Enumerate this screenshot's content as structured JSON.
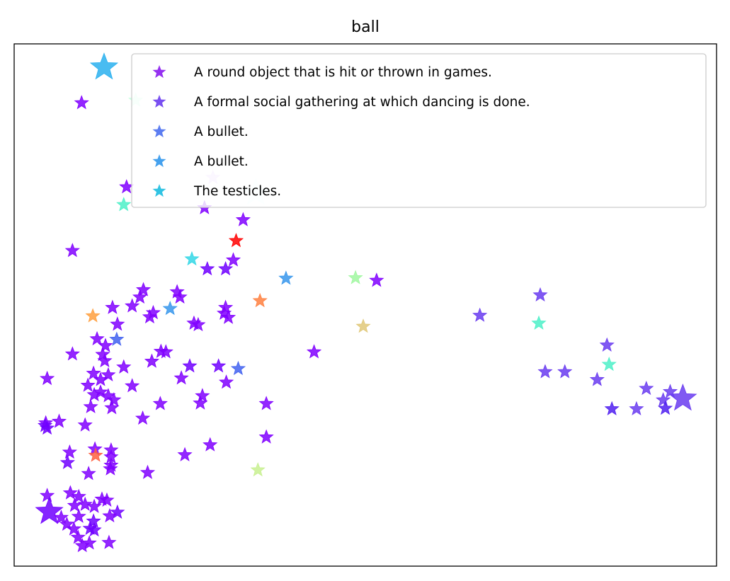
{
  "chart_data": {
    "type": "scatter",
    "title": "ball",
    "xlabel": "",
    "ylabel": "",
    "xlim": [
      0,
      100
    ],
    "ylim": [
      0,
      100
    ],
    "grid": false,
    "axis_ticks": false,
    "marker": "star",
    "legend": {
      "placement": "top-right",
      "entries": [
        {
          "label": "A round object that is hit or thrown in games.",
          "color": "#8a1af0"
        },
        {
          "label": "A formal social gathering at which dancing is done.",
          "color": "#6a3cf0"
        },
        {
          "label": "A bullet.",
          "color": "#4a6ff0"
        },
        {
          "label": "A bullet.",
          "color": "#3197ec"
        },
        {
          "label": "The testicles.",
          "color": "#1bbde0"
        }
      ]
    },
    "points": [
      {
        "x": 12.8,
        "y": 95.5,
        "color": "#2ab0ef",
        "size": "large"
      },
      {
        "x": 9.6,
        "y": 88.7,
        "color": "#8000ff"
      },
      {
        "x": 17.3,
        "y": 89.2,
        "color": "#c8ffe0"
      },
      {
        "x": 28.3,
        "y": 74.4,
        "color": "#e0c8ff"
      },
      {
        "x": 16.0,
        "y": 72.6,
        "color": "#8000ff"
      },
      {
        "x": 15.6,
        "y": 69.2,
        "color": "#4ef0c8"
      },
      {
        "x": 34.4,
        "y": 71.5,
        "color": "#e8ffff",
        "size": "large"
      },
      {
        "x": 27.1,
        "y": 68.6,
        "color": "#8000ff"
      },
      {
        "x": 32.6,
        "y": 66.3,
        "color": "#8000ff"
      },
      {
        "x": 31.6,
        "y": 62.3,
        "color": "#ff0000"
      },
      {
        "x": 8.3,
        "y": 60.4,
        "color": "#8000ff"
      },
      {
        "x": 25.3,
        "y": 58.8,
        "color": "#33d7e6"
      },
      {
        "x": 31.2,
        "y": 58.6,
        "color": "#8000ff"
      },
      {
        "x": 27.5,
        "y": 56.9,
        "color": "#7000ff"
      },
      {
        "x": 30.1,
        "y": 56.9,
        "color": "#7000ff"
      },
      {
        "x": 38.7,
        "y": 55.1,
        "color": "#3797ec"
      },
      {
        "x": 48.6,
        "y": 55.2,
        "color": "#a0f7a0"
      },
      {
        "x": 51.6,
        "y": 54.7,
        "color": "#8000ff"
      },
      {
        "x": 18.4,
        "y": 52.9,
        "color": "#8000ff"
      },
      {
        "x": 23.2,
        "y": 52.5,
        "color": "#8000ff"
      },
      {
        "x": 17.9,
        "y": 51.5,
        "color": "#8000ff"
      },
      {
        "x": 23.6,
        "y": 51.5,
        "color": "#8000ff"
      },
      {
        "x": 35.0,
        "y": 50.8,
        "color": "#ff8040"
      },
      {
        "x": 14.0,
        "y": 49.5,
        "color": "#8000ff"
      },
      {
        "x": 16.8,
        "y": 49.8,
        "color": "#8000ff"
      },
      {
        "x": 22.2,
        "y": 49.3,
        "color": "#3797ec"
      },
      {
        "x": 30.1,
        "y": 49.5,
        "color": "#8000ff"
      },
      {
        "x": 19.8,
        "y": 48.5,
        "color": "#8000ff"
      },
      {
        "x": 11.2,
        "y": 47.9,
        "color": "#ffa040"
      },
      {
        "x": 29.9,
        "y": 48.4,
        "color": "#8000ff"
      },
      {
        "x": 30.5,
        "y": 47.6,
        "color": "#8000ff"
      },
      {
        "x": 19.3,
        "y": 47.7,
        "color": "#8000ff"
      },
      {
        "x": 14.7,
        "y": 46.3,
        "color": "#8000ff"
      },
      {
        "x": 25.6,
        "y": 46.5,
        "color": "#8000ff"
      },
      {
        "x": 26.2,
        "y": 46.2,
        "color": "#8000ff"
      },
      {
        "x": 49.7,
        "y": 45.9,
        "color": "#e0c878"
      },
      {
        "x": 11.8,
        "y": 43.5,
        "color": "#8000ff"
      },
      {
        "x": 14.6,
        "y": 43.4,
        "color": "#4262f0"
      },
      {
        "x": 13.0,
        "y": 42.2,
        "color": "#8000ff"
      },
      {
        "x": 12.6,
        "y": 40.5,
        "color": "#8000ff"
      },
      {
        "x": 8.3,
        "y": 40.6,
        "color": "#8000ff"
      },
      {
        "x": 20.9,
        "y": 41.1,
        "color": "#8000ff"
      },
      {
        "x": 21.6,
        "y": 41.0,
        "color": "#8000ff"
      },
      {
        "x": 42.7,
        "y": 41.0,
        "color": "#8000ff"
      },
      {
        "x": 12.9,
        "y": 39.3,
        "color": "#8000ff"
      },
      {
        "x": 19.6,
        "y": 39.2,
        "color": "#8000ff"
      },
      {
        "x": 15.6,
        "y": 38.1,
        "color": "#8000ff"
      },
      {
        "x": 25.0,
        "y": 38.3,
        "color": "#7000ff"
      },
      {
        "x": 29.1,
        "y": 38.3,
        "color": "#7000ff"
      },
      {
        "x": 31.9,
        "y": 37.8,
        "color": "#4262f0"
      },
      {
        "x": 11.3,
        "y": 36.9,
        "color": "#8000ff"
      },
      {
        "x": 13.4,
        "y": 36.6,
        "color": "#8000ff"
      },
      {
        "x": 23.8,
        "y": 36.0,
        "color": "#8000ff"
      },
      {
        "x": 4.7,
        "y": 35.9,
        "color": "#8000ff"
      },
      {
        "x": 12.3,
        "y": 35.7,
        "color": "#8000ff"
      },
      {
        "x": 30.2,
        "y": 35.2,
        "color": "#8000ff"
      },
      {
        "x": 10.5,
        "y": 34.6,
        "color": "#8000ff"
      },
      {
        "x": 16.8,
        "y": 34.5,
        "color": "#8000ff"
      },
      {
        "x": 12.3,
        "y": 33.3,
        "color": "#8000ff"
      },
      {
        "x": 11.4,
        "y": 32.8,
        "color": "#8000ff"
      },
      {
        "x": 13.4,
        "y": 32.6,
        "color": "#8000ff"
      },
      {
        "x": 14.2,
        "y": 31.8,
        "color": "#8000ff"
      },
      {
        "x": 26.8,
        "y": 32.6,
        "color": "#8000ff"
      },
      {
        "x": 26.5,
        "y": 31.2,
        "color": "#8000ff"
      },
      {
        "x": 20.8,
        "y": 31.1,
        "color": "#8000ff"
      },
      {
        "x": 35.9,
        "y": 31.1,
        "color": "#8000ff"
      },
      {
        "x": 10.9,
        "y": 30.5,
        "color": "#8000ff"
      },
      {
        "x": 13.9,
        "y": 30.3,
        "color": "#8000ff"
      },
      {
        "x": 18.3,
        "y": 28.3,
        "color": "#8000ff"
      },
      {
        "x": 6.4,
        "y": 27.7,
        "color": "#8000ff"
      },
      {
        "x": 4.5,
        "y": 27.4,
        "color": "#8000ff"
      },
      {
        "x": 4.4,
        "y": 26.9,
        "color": "#7000ff"
      },
      {
        "x": 4.7,
        "y": 26.4,
        "color": "#7000ff"
      },
      {
        "x": 10.1,
        "y": 27.0,
        "color": "#8000ff"
      },
      {
        "x": 35.9,
        "y": 24.7,
        "color": "#8000ff"
      },
      {
        "x": 27.9,
        "y": 23.2,
        "color": "#8000ff"
      },
      {
        "x": 11.5,
        "y": 22.4,
        "color": "#8000ff"
      },
      {
        "x": 7.9,
        "y": 21.8,
        "color": "#8000ff"
      },
      {
        "x": 13.8,
        "y": 22.2,
        "color": "#8000ff"
      },
      {
        "x": 11.6,
        "y": 21.2,
        "color": "#ff6040"
      },
      {
        "x": 24.3,
        "y": 21.3,
        "color": "#8000ff"
      },
      {
        "x": 13.8,
        "y": 20.9,
        "color": "#8000ff"
      },
      {
        "x": 7.6,
        "y": 19.8,
        "color": "#7000ff"
      },
      {
        "x": 13.8,
        "y": 19.3,
        "color": "#8000ff"
      },
      {
        "x": 13.7,
        "y": 18.6,
        "color": "#8000ff"
      },
      {
        "x": 34.7,
        "y": 18.4,
        "color": "#c8f090"
      },
      {
        "x": 10.6,
        "y": 17.7,
        "color": "#8000ff"
      },
      {
        "x": 19.0,
        "y": 17.9,
        "color": "#8000ff"
      },
      {
        "x": 4.7,
        "y": 13.5,
        "color": "#8000ff"
      },
      {
        "x": 8.0,
        "y": 14.0,
        "color": "#8000ff"
      },
      {
        "x": 9.2,
        "y": 13.3,
        "color": "#8000ff"
      },
      {
        "x": 12.5,
        "y": 12.8,
        "color": "#8000ff"
      },
      {
        "x": 13.2,
        "y": 12.6,
        "color": "#8000ff"
      },
      {
        "x": 8.6,
        "y": 11.6,
        "color": "#8000ff"
      },
      {
        "x": 10.1,
        "y": 11.8,
        "color": "#8000ff"
      },
      {
        "x": 11.4,
        "y": 11.4,
        "color": "#8000ff"
      },
      {
        "x": 5.0,
        "y": 10.4,
        "color": "#7000ff",
        "size": "large"
      },
      {
        "x": 14.7,
        "y": 10.3,
        "color": "#7000ff"
      },
      {
        "x": 13.6,
        "y": 9.6,
        "color": "#8000ff"
      },
      {
        "x": 6.7,
        "y": 9.3,
        "color": "#8000ff"
      },
      {
        "x": 9.2,
        "y": 9.5,
        "color": "#8000ff"
      },
      {
        "x": 11.3,
        "y": 8.6,
        "color": "#7000ff"
      },
      {
        "x": 7.5,
        "y": 8.0,
        "color": "#8000ff"
      },
      {
        "x": 8.5,
        "y": 7.1,
        "color": "#8000ff"
      },
      {
        "x": 10.8,
        "y": 7.2,
        "color": "#7000ff"
      },
      {
        "x": 11.4,
        "y": 6.9,
        "color": "#7000ff"
      },
      {
        "x": 9.1,
        "y": 5.5,
        "color": "#8000ff"
      },
      {
        "x": 10.7,
        "y": 4.4,
        "color": "#8000ff"
      },
      {
        "x": 9.7,
        "y": 3.9,
        "color": "#8000ff"
      },
      {
        "x": 13.5,
        "y": 4.5,
        "color": "#8000ff"
      },
      {
        "x": 66.3,
        "y": 48.0,
        "color": "#6a3cf0"
      },
      {
        "x": 74.9,
        "y": 51.9,
        "color": "#6a3cf0"
      },
      {
        "x": 74.7,
        "y": 46.5,
        "color": "#4ef0c8"
      },
      {
        "x": 84.4,
        "y": 42.3,
        "color": "#6a3cf0"
      },
      {
        "x": 84.7,
        "y": 38.6,
        "color": "#4ef0c8"
      },
      {
        "x": 75.6,
        "y": 37.2,
        "color": "#6a3cf0"
      },
      {
        "x": 78.4,
        "y": 37.2,
        "color": "#6a3cf0"
      },
      {
        "x": 83.0,
        "y": 35.7,
        "color": "#6a3cf0"
      },
      {
        "x": 90.0,
        "y": 34.0,
        "color": "#6a3cf0"
      },
      {
        "x": 93.4,
        "y": 33.4,
        "color": "#6a3cf0"
      },
      {
        "x": 92.4,
        "y": 31.8,
        "color": "#6a3cf0"
      },
      {
        "x": 95.2,
        "y": 32.1,
        "color": "#6a3cf0",
        "size": "large"
      },
      {
        "x": 85.1,
        "y": 30.1,
        "color": "#5020f0"
      },
      {
        "x": 88.6,
        "y": 30.1,
        "color": "#6a3cf0"
      },
      {
        "x": 92.7,
        "y": 30.2,
        "color": "#5020f0"
      }
    ]
  }
}
